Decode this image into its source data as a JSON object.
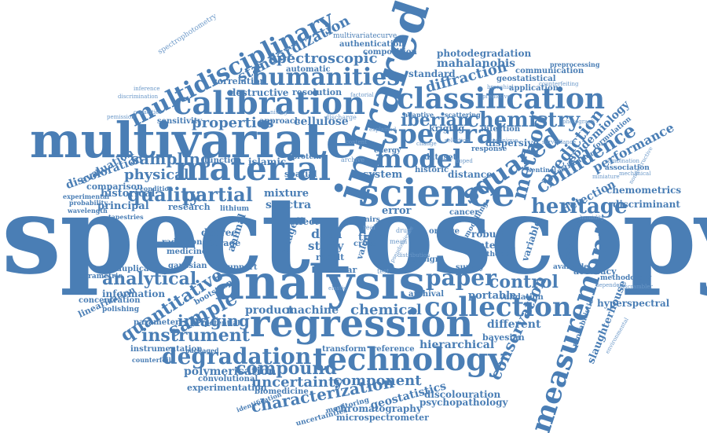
{
  "word_cloud": {
    "color": "#4a7eb5",
    "words": [
      {
        "text": "spectroscopy"
      },
      {
        "text": "multivariate"
      },
      {
        "text": "analysis"
      },
      {
        "text": "regression"
      },
      {
        "text": "infrared"
      },
      {
        "text": "science"
      },
      {
        "text": "calibration"
      },
      {
        "text": "classification"
      },
      {
        "text": "technology"
      },
      {
        "text": "material"
      },
      {
        "text": "humanities"
      },
      {
        "text": "multidisciplinary"
      },
      {
        "text": "spectral"
      },
      {
        "text": "model"
      },
      {
        "text": "squared"
      },
      {
        "text": "chemistry"
      },
      {
        "text": "iberian"
      },
      {
        "text": "method"
      },
      {
        "text": "collection"
      },
      {
        "text": "measurement"
      },
      {
        "text": "paper"
      },
      {
        "text": "control"
      },
      {
        "text": "degradation"
      },
      {
        "text": "compound"
      },
      {
        "text": "instrument"
      },
      {
        "text": "characterization"
      },
      {
        "text": "uncertainty"
      },
      {
        "text": "component"
      },
      {
        "text": "conservation"
      },
      {
        "text": "heritage"
      },
      {
        "text": "confidence"
      },
      {
        "text": "prediction"
      },
      {
        "text": "performance"
      },
      {
        "text": "quality"
      },
      {
        "text": "partial"
      },
      {
        "text": "physical"
      },
      {
        "text": "sampling"
      },
      {
        "text": "properties"
      },
      {
        "text": "analytical"
      },
      {
        "text": "sample"
      },
      {
        "text": "quantitative"
      },
      {
        "text": "imaging"
      },
      {
        "text": "chemical"
      },
      {
        "text": "machine"
      },
      {
        "text": "product"
      },
      {
        "text": "spectroscopic"
      },
      {
        "text": "standardization"
      },
      {
        "text": "diffraction"
      },
      {
        "text": "photodegradation"
      },
      {
        "text": "mahalanobis"
      },
      {
        "text": "chemometrics"
      },
      {
        "text": "discriminant"
      },
      {
        "text": "hyperspectral"
      },
      {
        "text": "hierarchical"
      },
      {
        "text": "polymerisation"
      },
      {
        "text": "experimentation"
      },
      {
        "text": "geostatistics"
      },
      {
        "text": "chromatography"
      },
      {
        "text": "microspectrometer"
      },
      {
        "text": "psychopathology"
      },
      {
        "text": "slaughterhouse"
      },
      {
        "text": "discolouration"
      },
      {
        "text": "epidemiology"
      },
      {
        "text": "correlation"
      },
      {
        "text": "cellulose"
      },
      {
        "text": "discoloration"
      },
      {
        "text": "evaluation"
      },
      {
        "text": "comparison"
      },
      {
        "text": "historical"
      },
      {
        "text": "principal"
      },
      {
        "text": "information"
      },
      {
        "text": "linearization"
      },
      {
        "text": "concentration"
      },
      {
        "text": "instrumentation"
      },
      {
        "text": "convolutional"
      },
      {
        "text": "biomedicine"
      },
      {
        "text": "transform"
      },
      {
        "text": "reference"
      },
      {
        "text": "different"
      },
      {
        "text": "bayesian"
      },
      {
        "text": "portable"
      },
      {
        "text": "validation"
      },
      {
        "text": "mixture"
      },
      {
        "text": "spectra"
      },
      {
        "text": "data"
      },
      {
        "text": "study"
      },
      {
        "text": "system"
      },
      {
        "text": "distance"
      },
      {
        "text": "dispersive"
      },
      {
        "text": "detection"
      },
      {
        "text": "robust"
      },
      {
        "text": "interval"
      },
      {
        "text": "variable"
      },
      {
        "text": "accuracy"
      },
      {
        "text": "survey"
      },
      {
        "text": "archival"
      },
      {
        "text": "design"
      },
      {
        "text": "multivariatecurve"
      },
      {
        "text": "authentication"
      },
      {
        "text": "communication"
      },
      {
        "text": "geostatistical"
      },
      {
        "text": "application"
      },
      {
        "text": "resolution"
      },
      {
        "text": "destructive"
      },
      {
        "text": "automatic"
      },
      {
        "text": "composition"
      },
      {
        "text": "standard"
      },
      {
        "text": "kriging"
      },
      {
        "text": "islamic"
      },
      {
        "text": "spatial"
      },
      {
        "text": "sensitivity"
      },
      {
        "text": "approach"
      },
      {
        "text": "research"
      },
      {
        "text": "radiation"
      },
      {
        "text": "medicine"
      },
      {
        "text": "degree"
      },
      {
        "text": "storage"
      },
      {
        "text": "animal"
      },
      {
        "text": "support"
      },
      {
        "text": "gaussian"
      },
      {
        "text": "duplicate"
      },
      {
        "text": "parametric"
      },
      {
        "text": "polishing"
      },
      {
        "text": "parameter"
      },
      {
        "text": "counterfoil"
      },
      {
        "text": "packaged"
      },
      {
        "text": "potential"
      },
      {
        "text": "bootstrap"
      },
      {
        "text": "effect"
      },
      {
        "text": "image"
      },
      {
        "text": "result"
      },
      {
        "text": "linear"
      },
      {
        "text": "cross"
      },
      {
        "text": "time"
      },
      {
        "text": "error"
      },
      {
        "text": "methodology"
      },
      {
        "text": "uncertainties"
      },
      {
        "text": "monitoring"
      },
      {
        "text": "identification"
      },
      {
        "text": "tapestries"
      },
      {
        "text": "experimental"
      },
      {
        "text": "probability"
      },
      {
        "text": "wavelength"
      },
      {
        "text": "lithium"
      },
      {
        "text": "function"
      },
      {
        "text": "protein"
      },
      {
        "text": "condition"
      },
      {
        "text": "discrimination"
      },
      {
        "text": "inference"
      },
      {
        "text": "capacities"
      },
      {
        "text": "pemission"
      },
      {
        "text": "spectrophotometry"
      },
      {
        "text": "orange"
      },
      {
        "text": "cancer"
      },
      {
        "text": "cathode"
      },
      {
        "text": "available"
      },
      {
        "text": "infection"
      },
      {
        "text": "formulation"
      },
      {
        "text": "estimation"
      },
      {
        "text": "association"
      },
      {
        "text": "sentinel"
      },
      {
        "text": "reflectance"
      },
      {
        "text": "modelling"
      },
      {
        "text": "probabilistic"
      },
      {
        "text": "dataset"
      },
      {
        "text": "response"
      },
      {
        "text": "historic"
      },
      {
        "text": "energy"
      },
      {
        "text": "adaptive"
      },
      {
        "text": "scattering"
      },
      {
        "text": "bronchial"
      },
      {
        "text": "predictive"
      },
      {
        "text": "preprocessing"
      },
      {
        "text": "counterfeiting"
      },
      {
        "text": "value"
      },
      {
        "text": "nirs"
      },
      {
        "text": "real"
      },
      {
        "text": "drug"
      },
      {
        "text": "mean"
      },
      {
        "text": "unscrambler"
      },
      {
        "text": "dependent"
      },
      {
        "text": "test"
      },
      {
        "text": "distribution"
      },
      {
        "text": "photograph"
      },
      {
        "text": "nondestructive"
      },
      {
        "text": "combination"
      },
      {
        "text": "mechanical"
      },
      {
        "text": "humidity"
      },
      {
        "text": "factorial"
      },
      {
        "text": "surveillance"
      },
      {
        "text": "miniature"
      },
      {
        "text": "environmental"
      },
      {
        "text": "explained"
      },
      {
        "text": "selection"
      },
      {
        "text": "discharge"
      },
      {
        "text": "nitrogen"
      },
      {
        "text": "content"
      },
      {
        "text": "archive"
      },
      {
        "text": "doped"
      },
      {
        "text": "change"
      },
      {
        "text": "technique"
      },
      {
        "text": "pseudoscience"
      },
      {
        "text": "elastic"
      }
    ]
  }
}
